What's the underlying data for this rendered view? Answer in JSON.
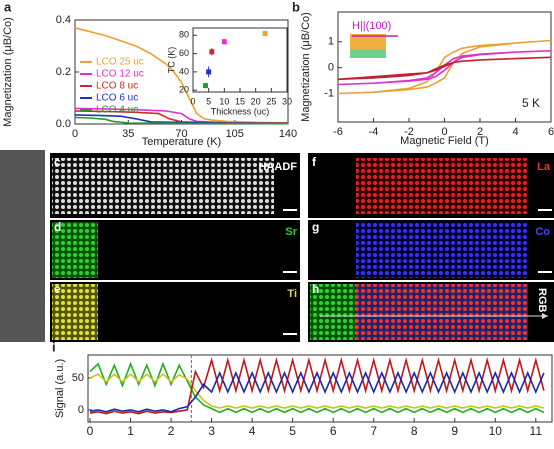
{
  "chart_data": [
    {
      "type": "line",
      "panel": "a",
      "y_label": "Magnetization (μB/Co)",
      "x_label": "Temperature (K)",
      "xlim": [
        0,
        140
      ],
      "xticks": [
        0,
        35,
        70,
        105,
        140
      ],
      "ylim": [
        0,
        0.4
      ],
      "yticks": [
        {
          "value": 0,
          "label": "0.0"
        },
        {
          "value": 0.2,
          "label": "0.2"
        },
        {
          "value": 0.4,
          "label": "0.4"
        }
      ],
      "series": [
        {
          "name": "LCO 25 uc",
          "color": "#f0a030",
          "x": [
            0,
            10,
            20,
            30,
            40,
            50,
            60,
            65,
            70,
            75,
            80,
            85,
            90,
            100,
            110,
            120,
            130,
            140
          ],
          "values": [
            0.37,
            0.355,
            0.34,
            0.32,
            0.3,
            0.27,
            0.23,
            0.2,
            0.16,
            0.1,
            0.04,
            0.02,
            0.015,
            0.01,
            0.008,
            0.006,
            0.005,
            0.005
          ]
        },
        {
          "name": "LCO 12 uc",
          "color": "#e030d0",
          "x": [
            0,
            20,
            40,
            60,
            70,
            75,
            80,
            100,
            140
          ],
          "values": [
            0.06,
            0.058,
            0.055,
            0.05,
            0.04,
            0.02,
            0.01,
            0.005,
            0.003
          ]
        },
        {
          "name": "LCO 8 uc",
          "color": "#d02828",
          "x": [
            0,
            20,
            40,
            55,
            62,
            70,
            100,
            140
          ],
          "values": [
            0.05,
            0.048,
            0.045,
            0.04,
            0.02,
            0.008,
            0.004,
            0.003
          ]
        },
        {
          "name": "LCO 6 uc",
          "color": "#2030c0",
          "x": [
            0,
            15,
            30,
            40,
            50,
            100,
            140
          ],
          "values": [
            0.035,
            0.033,
            0.03,
            0.02,
            0.008,
            0.003,
            0.002
          ]
        },
        {
          "name": "LCO 4 uc",
          "color": "#20a020",
          "x": [
            0,
            10,
            20,
            25,
            35,
            100,
            140
          ],
          "values": [
            0.025,
            0.023,
            0.018,
            0.01,
            0.004,
            0.002,
            0.001
          ]
        }
      ]
    },
    {
      "type": "errorbar",
      "y_label": "TC (K)",
      "x_label": "Thickness (uc)",
      "xlim": [
        0,
        30
      ],
      "xticks": [
        0,
        5,
        10,
        15,
        20,
        25,
        30
      ],
      "ylim": [
        18,
        88
      ],
      "yticks": [
        20,
        40,
        60,
        80
      ],
      "x": [
        4,
        5,
        6,
        10,
        23
      ],
      "values": [
        25,
        40,
        62,
        73,
        82
      ],
      "errors": [
        3,
        6,
        4,
        3,
        3
      ],
      "colors": [
        "#20a020",
        "#2030c0",
        "#d02828",
        "#e030d0",
        "#f0a030"
      ]
    },
    {
      "type": "line",
      "panel": "b",
      "y_label": "Magnetization (μB/Co)",
      "x_label": "Magnetic Field (T)",
      "annotations": [
        "H||(100)",
        "5 K"
      ],
      "xlim": [
        -6,
        6
      ],
      "xticks": [
        -6,
        -4,
        -2,
        0,
        2,
        4,
        6
      ],
      "ylim": [
        -2.1,
        2.15
      ],
      "yticks": [
        -1,
        0,
        1
      ],
      "series": [
        {
          "color": "#f0a030",
          "x": [
            -6,
            -4,
            -2,
            -1,
            -0.5,
            0,
            0.5,
            1,
            2,
            4,
            6,
            4,
            2,
            1,
            0.5,
            0,
            -0.5,
            -1,
            -2,
            -4,
            -6
          ],
          "values": [
            -1,
            -0.95,
            -0.85,
            -0.75,
            -0.6,
            -0.4,
            0.2,
            0.55,
            0.8,
            0.95,
            1.05,
            0.95,
            0.85,
            0.75,
            0.6,
            0.4,
            -0.2,
            -0.55,
            -0.8,
            -0.95,
            -1
          ]
        },
        {
          "color": "#e030d0",
          "x": [
            -6,
            -4,
            -2,
            -1,
            -0.5,
            0,
            0.5,
            1,
            2,
            4,
            6,
            4,
            2,
            1,
            0.5,
            0,
            -0.5,
            -1,
            -2,
            -4,
            -6
          ],
          "values": [
            -0.65,
            -0.6,
            -0.5,
            -0.4,
            -0.2,
            0.1,
            0.35,
            0.45,
            0.52,
            0.6,
            0.65,
            0.6,
            0.5,
            0.4,
            0.2,
            -0.1,
            -0.35,
            -0.45,
            -0.52,
            -0.6,
            -0.65
          ]
        },
        {
          "color": "#c02030",
          "x": [
            -6,
            -4,
            -2,
            -1,
            -0.5,
            0,
            0.5,
            1,
            2,
            4,
            6,
            4,
            2,
            1,
            0.5,
            0,
            -0.5,
            -1,
            -2,
            -4,
            -6
          ],
          "values": [
            -0.45,
            -0.4,
            -0.3,
            -0.2,
            -0.05,
            0.1,
            0.2,
            0.25,
            0.3,
            0.35,
            0.4,
            0.35,
            0.3,
            0.25,
            0.2,
            0.05,
            -0.1,
            -0.2,
            -0.25,
            -0.35,
            -0.45
          ]
        }
      ]
    },
    {
      "type": "line",
      "panel": "i",
      "y_label": "Signal (a.u.)",
      "divider_x": 2.5,
      "xlim": [
        -0.05,
        11.4
      ],
      "xticks": [
        0,
        1,
        2,
        3,
        4,
        5,
        6,
        7,
        8,
        9,
        10,
        11
      ],
      "ylim": [
        -19,
        86
      ],
      "yticks": [
        0,
        50
      ],
      "x": [
        0,
        0.2,
        0.4,
        0.6,
        0.8,
        1,
        1.2,
        1.4,
        1.6,
        1.8,
        2,
        2.2,
        2.4,
        2.6,
        2.8,
        3,
        3.2,
        3.4,
        3.6,
        3.8,
        4,
        4.2,
        4.4,
        4.6,
        4.8,
        5,
        5.2,
        5.4,
        5.6,
        5.8,
        6,
        6.2,
        6.4,
        6.6,
        6.8,
        7,
        7.2,
        7.4,
        7.6,
        7.8,
        8,
        8.2,
        8.4,
        8.6,
        8.8,
        9,
        9.2,
        9.4,
        9.6,
        9.8,
        10,
        10.2,
        10.4,
        10.6,
        10.8,
        11,
        11.2
      ],
      "series": [
        {
          "color": "#20b020",
          "values": [
            60,
            72,
            40,
            70,
            38,
            72,
            40,
            70,
            38,
            72,
            40,
            70,
            45,
            20,
            8,
            2,
            -4,
            2,
            -4,
            2,
            -4,
            2,
            -4,
            2,
            -4,
            2,
            -4,
            2,
            -4,
            2,
            -4,
            2,
            -4,
            2,
            -4,
            2,
            -4,
            2,
            -4,
            2,
            -4,
            2,
            -4,
            2,
            -4,
            2,
            -4,
            2,
            -4,
            2,
            -4,
            2,
            -4,
            2,
            -4,
            2,
            -4
          ]
        },
        {
          "color": "#d0c020",
          "values": [
            50,
            56,
            44,
            56,
            44,
            56,
            44,
            56,
            44,
            56,
            44,
            55,
            48,
            30,
            15,
            6,
            3,
            6,
            3,
            6,
            3,
            6,
            3,
            6,
            3,
            6,
            3,
            6,
            3,
            6,
            3,
            6,
            3,
            6,
            3,
            6,
            3,
            6,
            3,
            6,
            3,
            6,
            3,
            6,
            3,
            6,
            3,
            6,
            3,
            6,
            3,
            6,
            3,
            6,
            3,
            6,
            3
          ]
        },
        {
          "color": "#c01818",
          "values": [
            -5,
            -3,
            -6,
            -2,
            -5,
            -3,
            -6,
            -2,
            -5,
            -3,
            -4,
            -2,
            0,
            60,
            35,
            78,
            30,
            78,
            30,
            78,
            30,
            78,
            30,
            78,
            30,
            78,
            30,
            78,
            30,
            78,
            30,
            78,
            30,
            78,
            30,
            78,
            30,
            78,
            30,
            78,
            30,
            78,
            30,
            78,
            30,
            78,
            30,
            78,
            30,
            78,
            30,
            78,
            30,
            78,
            30,
            78,
            30
          ]
        },
        {
          "color": "#1828b0",
          "values": [
            -2,
            0,
            -3,
            1,
            -2,
            0,
            -3,
            1,
            -2,
            0,
            -3,
            2,
            5,
            20,
            40,
            28,
            58,
            28,
            58,
            28,
            58,
            28,
            58,
            28,
            58,
            28,
            58,
            28,
            58,
            28,
            58,
            28,
            58,
            28,
            58,
            28,
            58,
            28,
            58,
            28,
            58,
            28,
            58,
            28,
            58,
            28,
            58,
            28,
            58,
            28,
            58,
            28,
            58,
            28,
            58,
            28,
            58
          ]
        }
      ]
    }
  ],
  "images": [
    {
      "letter": "c",
      "label": "HAADF"
    },
    {
      "letter": "d",
      "label": "Sr"
    },
    {
      "letter": "e",
      "label": "Ti"
    },
    {
      "letter": "f",
      "label": "La"
    },
    {
      "letter": "g",
      "label": "Co"
    },
    {
      "letter": "h",
      "label": "RGB"
    }
  ]
}
